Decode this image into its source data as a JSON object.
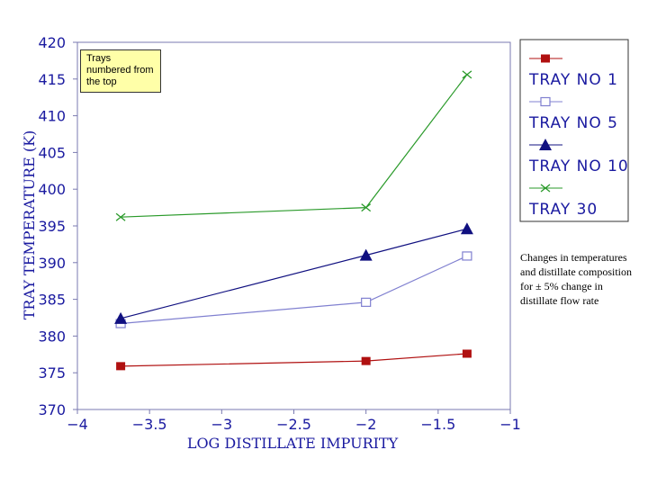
{
  "annotations": {
    "note": "Trays numbered from the top",
    "caption": "Changes in temperatures and distillate composition for ± 5% change in distillate flow rate"
  },
  "chart_data": {
    "type": "line",
    "xlabel": "LOG DISTILLATE IMPURITY",
    "ylabel": "TRAY TEMPERATURE (K)",
    "xlim": [
      -4,
      -1
    ],
    "ylim": [
      370,
      420
    ],
    "xticks": [
      -4,
      -3.5,
      -3,
      -2.5,
      -2,
      -1.5,
      -1
    ],
    "xtick_labels": [
      "−4",
      "−3.5",
      "−3",
      "−2.5",
      "−2",
      "−1.5",
      "−1"
    ],
    "yticks": [
      370,
      375,
      380,
      385,
      390,
      395,
      400,
      405,
      410,
      415,
      420
    ],
    "grid": false,
    "legend_position": "right",
    "x": [
      -3.7,
      -2.0,
      -1.3
    ],
    "series": [
      {
        "name": "TRAY NO 1",
        "values": [
          375.9,
          376.6,
          377.6
        ],
        "color": "#b01010",
        "marker": "filled-square"
      },
      {
        "name": "TRAY NO 5",
        "values": [
          381.7,
          384.6,
          390.9
        ],
        "color": "#8080d0",
        "marker": "open-square"
      },
      {
        "name": "TRAY NO 10",
        "values": [
          382.4,
          391.0,
          394.6
        ],
        "color": "#101080",
        "marker": "filled-triangle"
      },
      {
        "name": "TRAY 30",
        "values": [
          396.2,
          397.5,
          415.6
        ],
        "color": "#2a9a2a",
        "marker": "cross"
      }
    ]
  }
}
